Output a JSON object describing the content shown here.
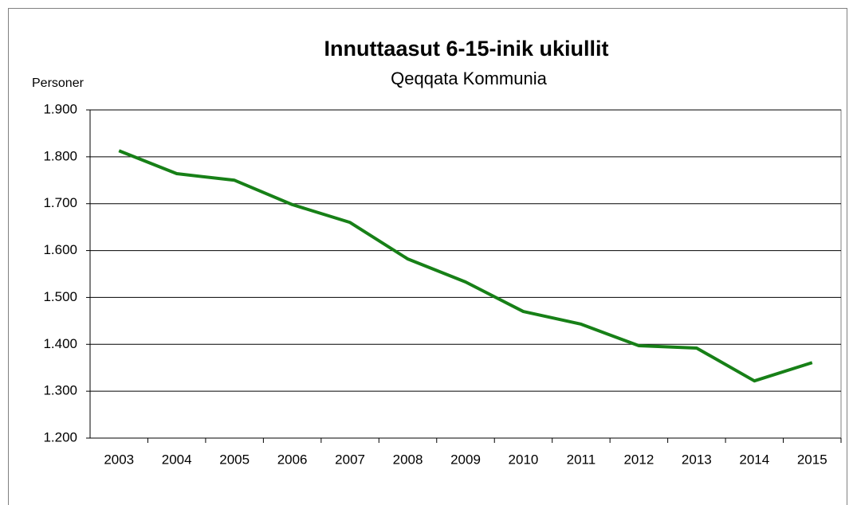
{
  "chart_data": {
    "type": "line",
    "title": "Innuttaasut 6-15-inik ukiullit",
    "subtitle": "Qeqqata Kommunia",
    "y_label": "Personer",
    "categories": [
      "2003",
      "2004",
      "2005",
      "2006",
      "2007",
      "2008",
      "2009",
      "2010",
      "2011",
      "2012",
      "2013",
      "2014",
      "2015"
    ],
    "series": [
      {
        "name": "Qeqqata Kommunia",
        "color": "#178017",
        "values": [
          1813,
          1764,
          1750,
          1698,
          1660,
          1582,
          1533,
          1470,
          1443,
          1397,
          1392,
          1322,
          1361
        ]
      }
    ],
    "ylim": [
      1200,
      1900
    ],
    "yticks": [
      {
        "value": 1200,
        "label": "1.200"
      },
      {
        "value": 1300,
        "label": "1.300"
      },
      {
        "value": 1400,
        "label": "1.400"
      },
      {
        "value": 1500,
        "label": "1.500"
      },
      {
        "value": 1600,
        "label": "1.600"
      },
      {
        "value": 1700,
        "label": "1.700"
      },
      {
        "value": 1800,
        "label": "1.800"
      },
      {
        "value": 1900,
        "label": "1.900"
      }
    ],
    "grid": true
  }
}
